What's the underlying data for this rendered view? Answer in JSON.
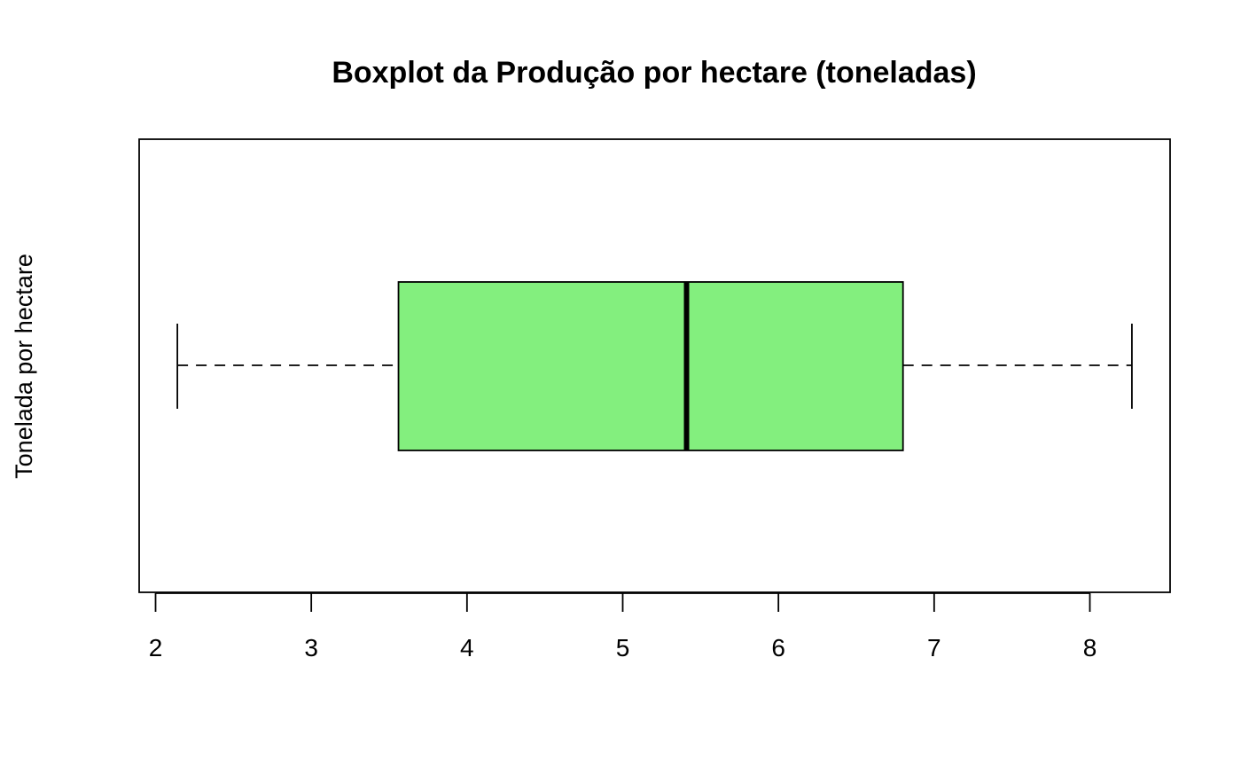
{
  "chart_data": {
    "type": "boxplot",
    "orientation": "horizontal",
    "title": "Boxplot da Produção por hectare (toneladas)",
    "xlabel": "",
    "ylabel": "Tonelada por hectare",
    "xlim": [
      2.0,
      8.5
    ],
    "x_ticks": [
      2,
      3,
      4,
      5,
      6,
      7,
      8
    ],
    "x_tick_labels": [
      "2",
      "3",
      "4",
      "5",
      "6",
      "7",
      "8"
    ],
    "grid": false,
    "legend": "none",
    "box": {
      "min": 2.14,
      "q1": 3.56,
      "median": 5.41,
      "q3": 6.8,
      "max": 8.27
    },
    "colors": {
      "box_fill": "#83ef7e",
      "stroke": "#000000"
    }
  }
}
